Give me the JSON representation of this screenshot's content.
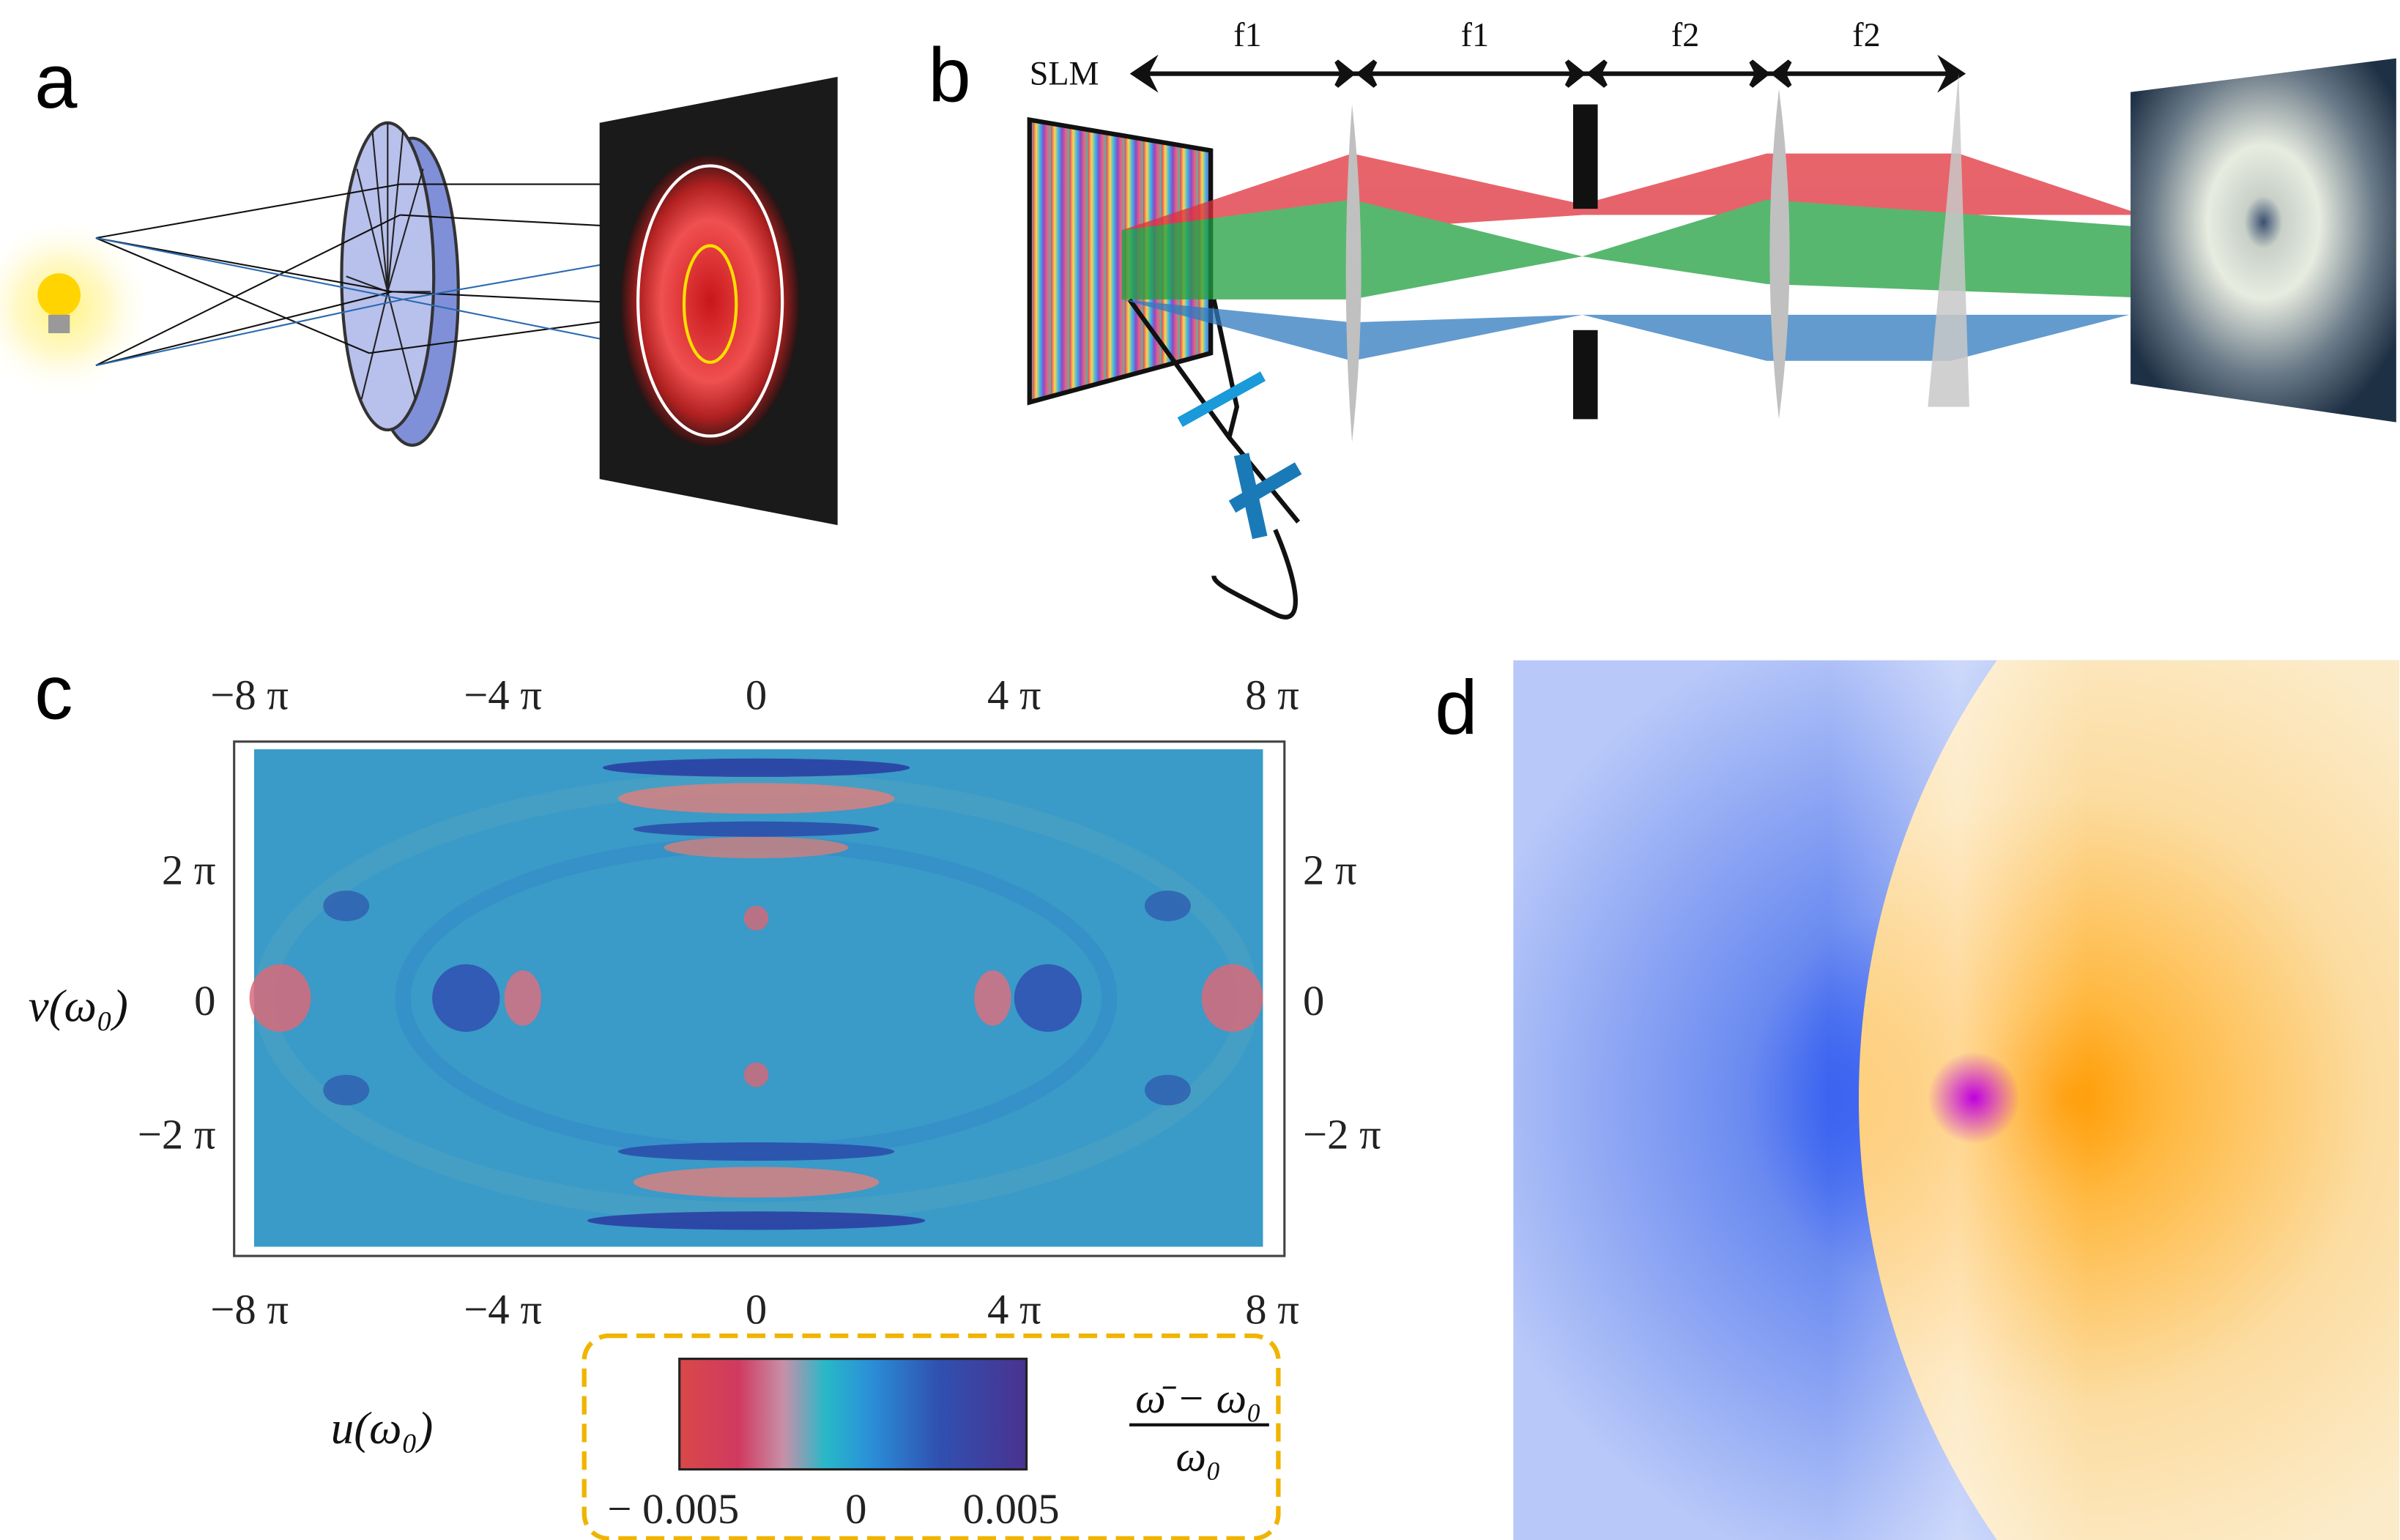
{
  "panels": {
    "a": {
      "label": "a"
    },
    "b": {
      "label": "b",
      "slm_label": "SLM",
      "distances": [
        "f1",
        "f1",
        "f2",
        "f2"
      ]
    },
    "c": {
      "label": "c",
      "x_ticks": [
        "−8 π",
        "−4 π",
        "0",
        "4 π",
        "8 π"
      ],
      "y_ticks": [
        "2 π",
        "0",
        "−2 π"
      ],
      "xlabel": "u(ω₀)",
      "ylabel": "v(ω₀)",
      "colorbar": {
        "ticks": [
          "− 0.005",
          "0",
          "0.005"
        ],
        "label_numerator": "ω̄ − ω₀",
        "label_denominator": "ω₀",
        "colors": [
          "#d94848",
          "#c85a8a",
          "#28a8d8",
          "#2f5fc0",
          "#503a9a"
        ],
        "range": [
          -0.005,
          0.005
        ]
      }
    },
    "d": {
      "label": "d"
    }
  },
  "colors": {
    "red_beam": "#e0303a",
    "green_beam": "#1fa040",
    "blue_beam": "#2f7ac0",
    "legend_border": "#f0b400"
  }
}
